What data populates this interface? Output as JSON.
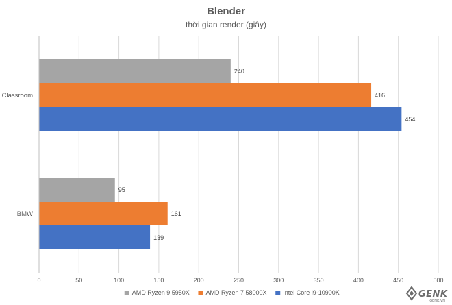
{
  "chart_data": {
    "type": "bar",
    "orientation": "horizontal",
    "title": "Blender",
    "subtitle": "thời gian render (giây)",
    "categories": [
      "Classroom",
      "BMW"
    ],
    "series": [
      {
        "name": "AMD Ryzen 9 5950X",
        "color": "#A5A5A5",
        "values": [
          240,
          95
        ]
      },
      {
        "name": "AMD Ryzen 7 58000X",
        "color": "#ED7D31",
        "values": [
          416,
          161
        ]
      },
      {
        "name": "Intel Core i9-10900K",
        "color": "#4472C4",
        "values": [
          454,
          139
        ]
      }
    ],
    "xlim": [
      0,
      500
    ],
    "xticks": [
      0,
      50,
      100,
      150,
      200,
      250,
      300,
      350,
      400,
      450,
      500
    ],
    "grid": "vertical",
    "legend": "bottom",
    "data_labels": true
  },
  "watermark": {
    "text": "GENK",
    "sub": "GENK.VN",
    "icon": "genk-logo-icon"
  }
}
